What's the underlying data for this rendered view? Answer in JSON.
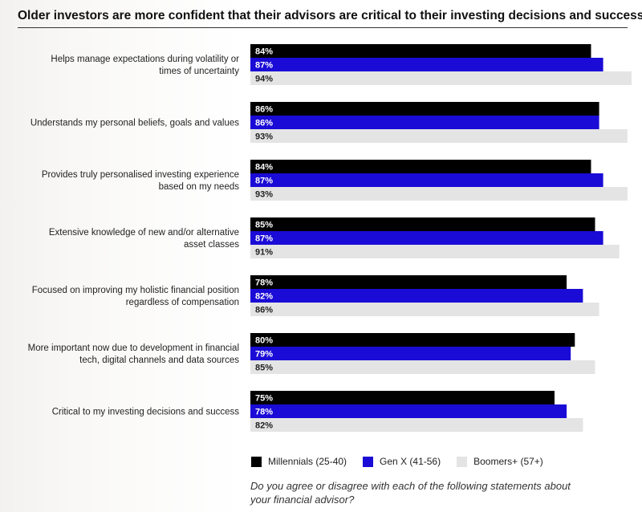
{
  "title": "Older investors are more confident that their advisors are critical to their investing decisions and success",
  "question": "Do you agree or disagree with each of the following statements about your financial advisor?",
  "colors": {
    "millennials": "#000000",
    "genx": "#1a0bd6",
    "boomers": "#e4e4e4"
  },
  "chart_data": {
    "type": "bar",
    "orientation": "horizontal",
    "categories": [
      [
        "Helps manage expectations during volatility or",
        "times of uncertainty"
      ],
      [
        "Understands my personal beliefs, goals and values"
      ],
      [
        "Provides truly personalised investing experience",
        "based on my needs"
      ],
      [
        "Extensive knowledge of new and/or alternative",
        "asset classes"
      ],
      [
        "Focused on improving my holistic financial position",
        "regardless of compensation"
      ],
      [
        "More important now due to development in financial",
        "tech, digital channels and data sources"
      ],
      [
        "Critical to my investing decisions and success"
      ]
    ],
    "series": [
      {
        "name": "Millennials (25-40)",
        "values": [
          84,
          86,
          84,
          85,
          78,
          80,
          75
        ]
      },
      {
        "name": "Gen X (41-56)",
        "values": [
          87,
          86,
          87,
          87,
          82,
          79,
          78
        ]
      },
      {
        "name": "Boomers+ (57+)",
        "values": [
          94,
          93,
          93,
          91,
          86,
          85,
          82
        ]
      }
    ],
    "value_suffix": "%",
    "xlim": [
      0,
      94
    ],
    "grid": false,
    "legend_position": "bottom"
  }
}
